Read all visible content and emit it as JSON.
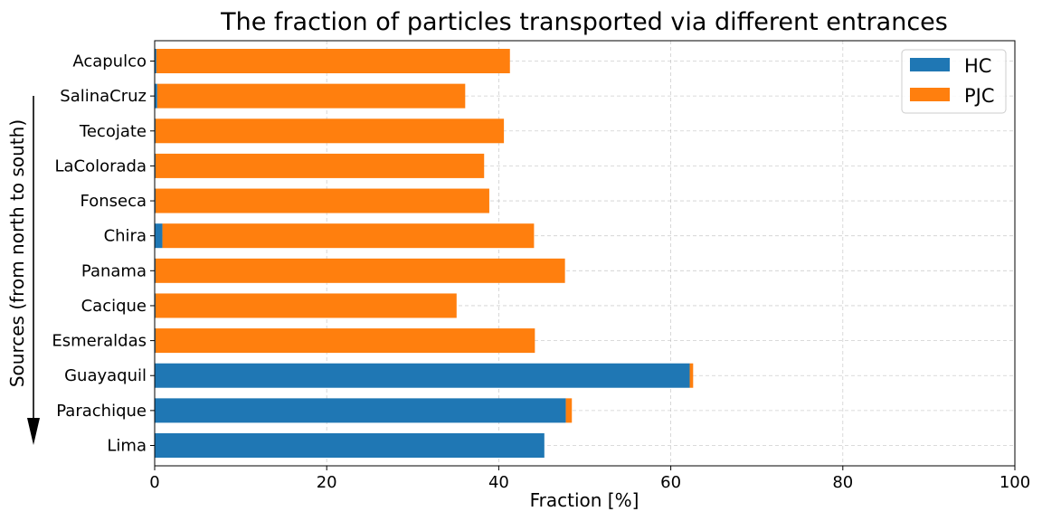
{
  "chart_data": {
    "type": "bar",
    "orientation": "horizontal",
    "stacked": true,
    "title": "The fraction of particles transported via different entrances",
    "xlabel": "Fraction [%]",
    "ylabel": "Sources (from north to south)",
    "xlim": [
      0,
      100
    ],
    "xticks": [
      "0",
      "20",
      "40",
      "60",
      "80",
      "100"
    ],
    "grid": true,
    "legend_position": "top-right",
    "categories": [
      "Acapulco",
      "SalinaCruz",
      "Tecojate",
      "LaColorada",
      "Fonseca",
      "Chira",
      "Panama",
      "Cacique",
      "Esmeraldas",
      "Guayaquil",
      "Parachique",
      "Lima"
    ],
    "series": [
      {
        "name": "HC",
        "color": "#1f77b4",
        "values": [
          0.2,
          0.3,
          0.1,
          0.1,
          0.1,
          0.9,
          0.1,
          0.1,
          0.1,
          62.2,
          47.8,
          45.3
        ]
      },
      {
        "name": "PJC",
        "color": "#ff7f0e",
        "values": [
          41.1,
          35.8,
          40.5,
          38.2,
          38.8,
          43.2,
          47.6,
          35.0,
          44.1,
          0.4,
          0.7,
          0.0
        ]
      }
    ]
  }
}
